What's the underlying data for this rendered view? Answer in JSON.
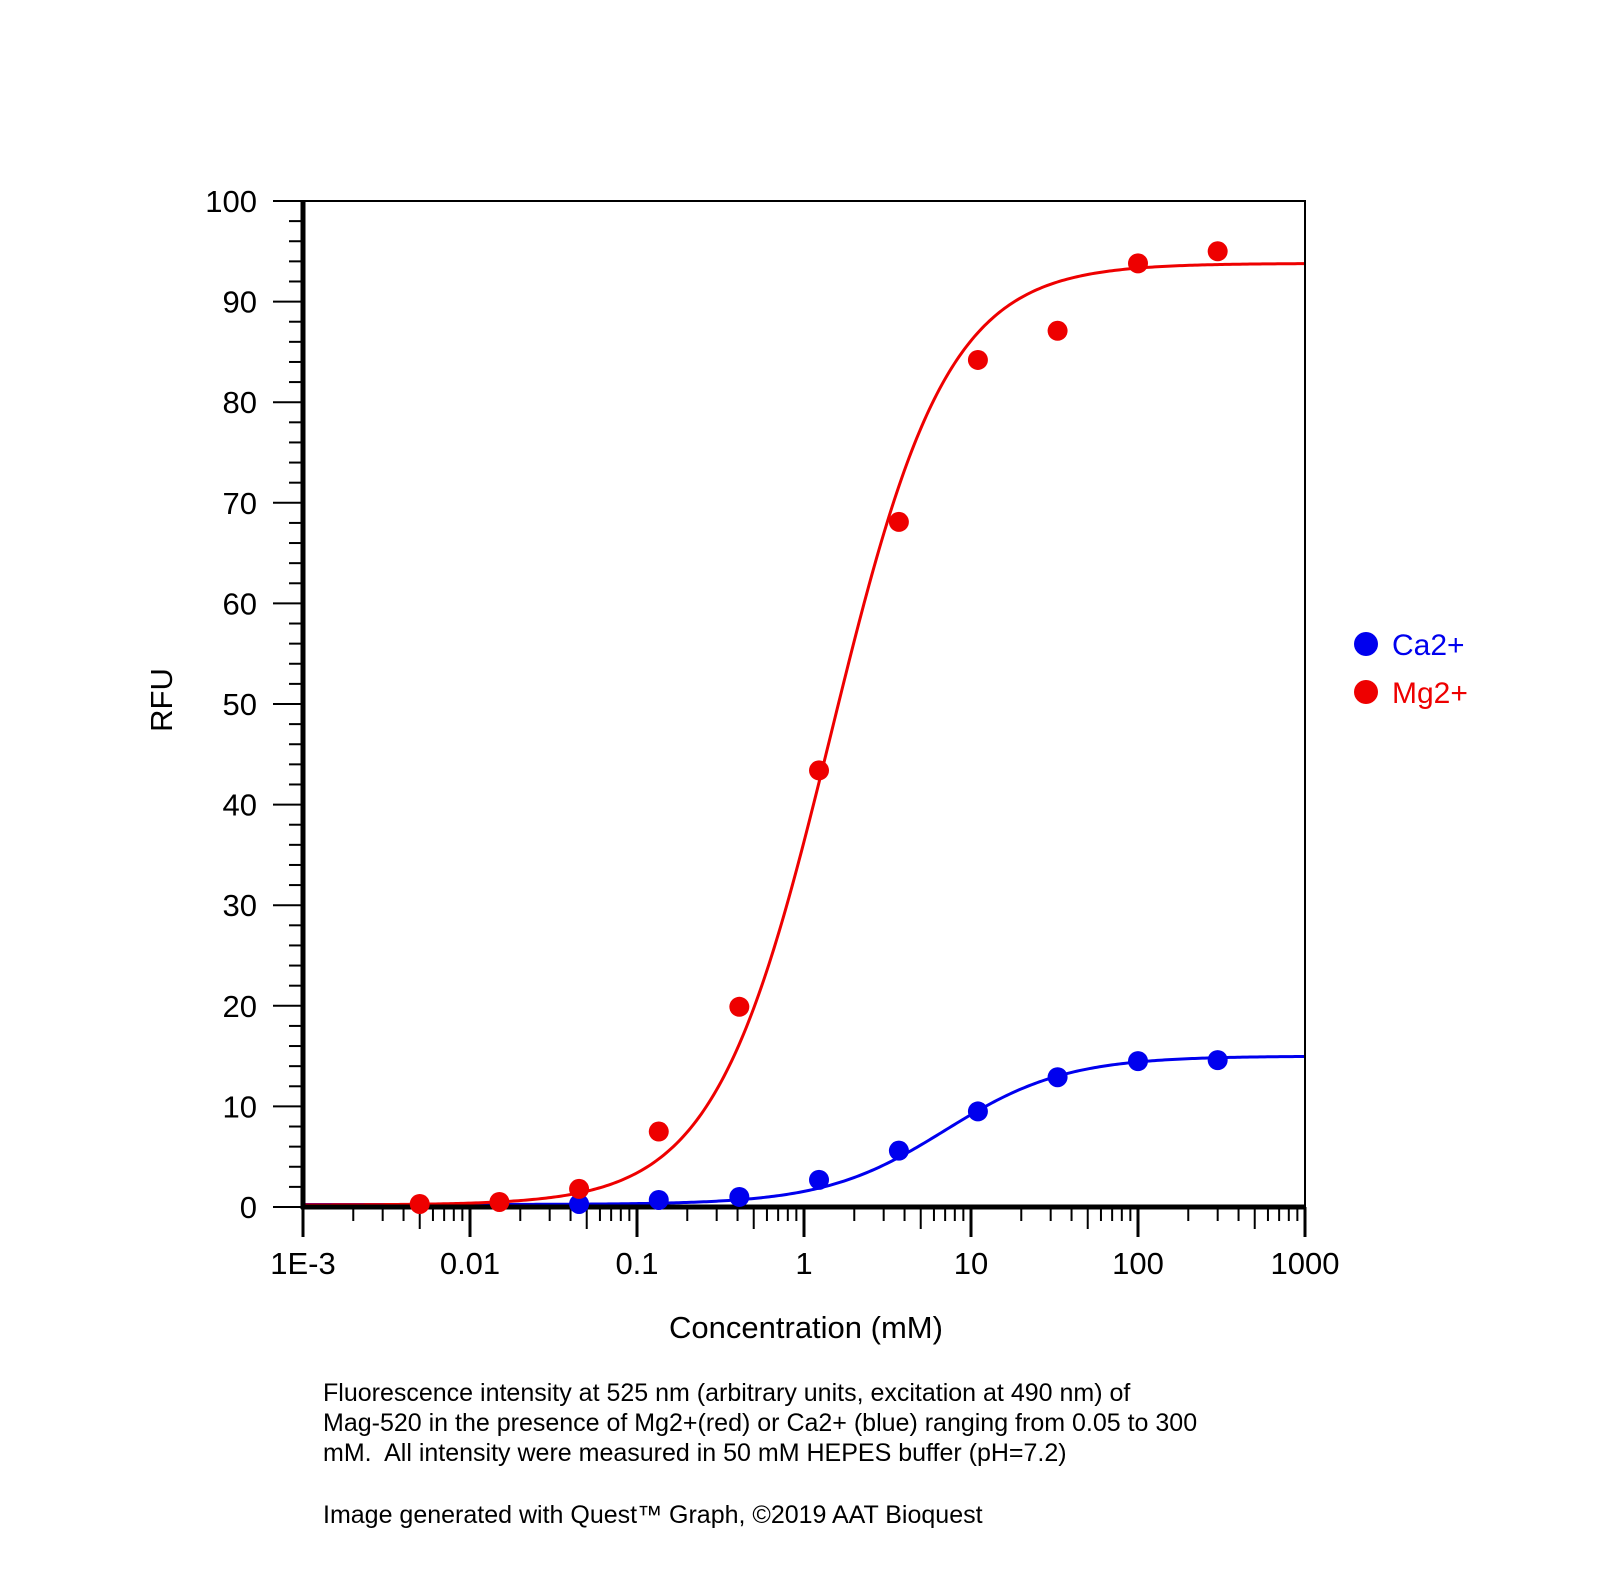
{
  "chart_data": {
    "type": "scatter",
    "xscale": "log",
    "title": "",
    "xlabel": "Concentration (mM)",
    "ylabel": "RFU",
    "xlim": [
      0.001,
      1000
    ],
    "ylim": [
      0,
      100
    ],
    "x_tick_values": [
      0.001,
      0.01,
      0.1,
      1,
      10,
      100,
      1000
    ],
    "x_tick_labels": [
      "1E-3",
      "0.01",
      "0.1",
      "1",
      "10",
      "100",
      "1000"
    ],
    "y_tick_values": [
      0,
      10,
      20,
      30,
      40,
      50,
      60,
      70,
      80,
      90,
      100
    ],
    "y_tick_labels": [
      "0",
      "10",
      "20",
      "30",
      "40",
      "50",
      "60",
      "70",
      "80",
      "90",
      "100"
    ],
    "y_minor_step": 2,
    "grid": false,
    "legend_position": "right",
    "series": [
      {
        "name": "Ca2+",
        "color": "#0000ee",
        "x": [
          0.045,
          0.135,
          0.41,
          1.23,
          3.7,
          11,
          33,
          100,
          300
        ],
        "y": [
          0.3,
          0.7,
          1.0,
          2.7,
          5.6,
          9.5,
          12.9,
          14.5,
          14.6
        ],
        "fit": {
          "bottom": 0.25,
          "top": 15.0,
          "ec50": 7.0,
          "hill": 1.2
        }
      },
      {
        "name": "Mg2+",
        "color": "#ee0000",
        "x": [
          0.005,
          0.015,
          0.045,
          0.135,
          0.41,
          1.23,
          3.7,
          11,
          33,
          100,
          300
        ],
        "y": [
          0.3,
          0.5,
          1.8,
          7.5,
          19.9,
          43.4,
          68.1,
          84.2,
          87.1,
          93.8,
          95.0
        ],
        "fit": {
          "bottom": 0.2,
          "top": 93.8,
          "ec50": 1.45,
          "hill": 1.25
        }
      }
    ]
  },
  "caption": {
    "line1": "Fluorescence intensity at 525 nm (arbitrary units, excitation at 490 nm) of",
    "line2": "Mag-520 in the presence of Mg2+(red) or Ca2+ (blue) ranging from 0.05 to 300",
    "line3": "mM.  All intensity were measured in 50 mM HEPES buffer (pH=7.2)"
  },
  "credit": "Image generated with Quest™ Graph, ©2019 AAT Bioquest"
}
